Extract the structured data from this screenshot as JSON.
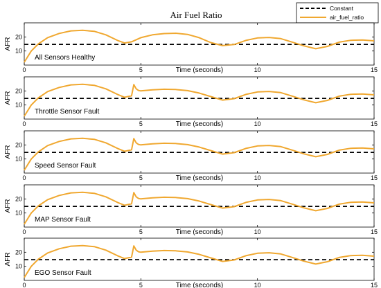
{
  "chart_data": {
    "type": "line",
    "title": "Air Fuel Ratio",
    "legend": {
      "position": "top-right",
      "entries": [
        {
          "label": "Constant",
          "style": "dashed",
          "color": "#000000"
        },
        {
          "label": "air_fuel_ratio",
          "style": "solid",
          "color": "#f0a830"
        }
      ]
    },
    "colors": {
      "constant": "#000000",
      "afr": "#f0a830"
    },
    "xlabel": "Time (seconds)",
    "ylabel": "AFR",
    "xlim": [
      0,
      15
    ],
    "ylim": [
      0,
      30
    ],
    "xticks": [
      0,
      5,
      10,
      15
    ],
    "yticks": [
      10,
      20
    ],
    "constant_value": 14.7,
    "panels": [
      {
        "label": "All Sensors Healthy",
        "x": [
          0,
          0.3,
          0.6,
          1,
          1.5,
          2,
          2.5,
          3,
          3.5,
          4,
          4.3,
          4.6,
          5,
          5.5,
          6,
          6.5,
          7,
          7.5,
          8,
          8.5,
          9,
          9.5,
          10,
          10.5,
          11,
          11.5,
          12,
          12.5,
          13,
          13.5,
          14,
          14.5,
          15
        ],
        "y": [
          2,
          10,
          15,
          19.5,
          22.5,
          24.3,
          24.7,
          24,
          21.5,
          17.5,
          15.7,
          16.5,
          19.5,
          21.5,
          22.4,
          22.6,
          21.8,
          19.5,
          16,
          13.8,
          14.6,
          17.5,
          19.3,
          19.6,
          18.8,
          16.3,
          13.6,
          11.6,
          13.3,
          16.3,
          17.6,
          17.8,
          17.2
        ]
      },
      {
        "label": "Throttle Sensor Fault",
        "x": [
          0,
          0.3,
          0.6,
          1,
          1.5,
          2,
          2.5,
          3,
          3.5,
          4,
          4.3,
          4.6,
          4.7,
          4.8,
          4.9,
          5,
          5.5,
          6,
          6.5,
          7,
          7.5,
          8,
          8.5,
          9,
          9.5,
          10,
          10.5,
          11,
          11.5,
          12,
          12.5,
          13,
          13.5,
          14,
          14.5,
          15
        ],
        "y": [
          2,
          10,
          15,
          19.5,
          22.5,
          24.3,
          24.7,
          24,
          21.5,
          17.5,
          15.5,
          16.5,
          24.5,
          21.5,
          20.3,
          20,
          20.8,
          21.2,
          21,
          20.2,
          18.5,
          16,
          13.5,
          14.5,
          17.5,
          19.3,
          19.6,
          18.8,
          16.3,
          13.6,
          11.6,
          13.3,
          16.3,
          17.6,
          17.8,
          17.2
        ]
      },
      {
        "label": "Speed Sensor Fault",
        "x": [
          0,
          0.3,
          0.6,
          1,
          1.5,
          2,
          2.5,
          3,
          3.5,
          4,
          4.3,
          4.6,
          4.7,
          4.8,
          4.9,
          5,
          5.5,
          6,
          6.5,
          7,
          7.5,
          8,
          8.5,
          9,
          9.5,
          10,
          10.5,
          11,
          11.5,
          12,
          12.5,
          13,
          13.5,
          14,
          14.5,
          15
        ],
        "y": [
          2,
          10,
          15,
          19.5,
          22.5,
          24.3,
          24.7,
          24,
          21.5,
          17.5,
          15.5,
          16.5,
          24.5,
          21.5,
          20.3,
          20,
          20.8,
          21.2,
          21,
          20.2,
          18.5,
          16,
          13.5,
          14.5,
          17.5,
          19.3,
          19.6,
          18.8,
          16.3,
          13.6,
          11.6,
          13.3,
          16.3,
          17.6,
          17.8,
          17.2
        ]
      },
      {
        "label": "MAP Sensor Fault",
        "x": [
          0,
          0.3,
          0.6,
          1,
          1.5,
          2,
          2.5,
          3,
          3.5,
          4,
          4.3,
          4.6,
          4.7,
          4.8,
          4.9,
          5,
          5.5,
          6,
          6.5,
          7,
          7.5,
          8,
          8.5,
          9,
          9.5,
          10,
          10.5,
          11,
          11.5,
          12,
          12.5,
          13,
          13.5,
          14,
          14.5,
          15
        ],
        "y": [
          2,
          10,
          15,
          19.5,
          22.5,
          24.3,
          24.7,
          24,
          21.5,
          17.5,
          15.5,
          16.5,
          24.5,
          21.5,
          20.3,
          20,
          20.8,
          21.2,
          21,
          20.2,
          18.5,
          16,
          13.5,
          14.5,
          17.5,
          19.3,
          19.6,
          18.8,
          16.3,
          13.6,
          11.6,
          13.3,
          16.3,
          17.6,
          17.8,
          17.2
        ]
      },
      {
        "label": "EGO Sensor Fault",
        "x": [
          0,
          0.3,
          0.6,
          1,
          1.5,
          2,
          2.5,
          3,
          3.5,
          4,
          4.3,
          4.6,
          4.7,
          4.8,
          4.9,
          5,
          5.5,
          6,
          6.5,
          7,
          7.5,
          8,
          8.5,
          9,
          9.5,
          10,
          10.5,
          11,
          11.5,
          12,
          12.5,
          13,
          13.5,
          14,
          14.5,
          15
        ],
        "y": [
          2,
          10,
          15,
          19.5,
          22.5,
          24.3,
          24.7,
          24,
          21.5,
          17.5,
          15.5,
          16.5,
          24.5,
          21.5,
          20.3,
          20,
          20.8,
          21.2,
          21,
          20.2,
          18.5,
          16,
          13.5,
          14.5,
          17.5,
          19.3,
          19.6,
          18.8,
          16.3,
          13.6,
          11.6,
          13.3,
          16.3,
          17.6,
          17.8,
          17.2
        ]
      }
    ]
  }
}
